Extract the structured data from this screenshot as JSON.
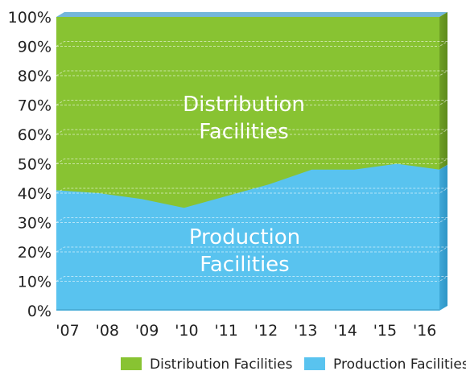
{
  "chart_data": {
    "type": "area",
    "stacked": true,
    "normalized": true,
    "categories": [
      "'07",
      "'08",
      "'09",
      "'10",
      "'11",
      "'12",
      "'13",
      "'14",
      "'15",
      "'16"
    ],
    "series": [
      {
        "name": "Production Facilities",
        "values": [
          41,
          40,
          38,
          35,
          39,
          43,
          48,
          48,
          50,
          48
        ],
        "color": "#59c3ef",
        "label_lines": [
          "Production",
          "Facilities"
        ]
      },
      {
        "name": "Distribution Facilities",
        "values": [
          59,
          60,
          62,
          65,
          61,
          57,
          52,
          52,
          50,
          52
        ],
        "color": "#88c332",
        "label_lines": [
          "Distribution",
          "Facilities"
        ]
      }
    ],
    "y_ticks": [
      "0%",
      "10%",
      "20%",
      "30%",
      "40%",
      "50%",
      "60%",
      "70%",
      "80%",
      "90%",
      "100%"
    ],
    "ylim": [
      0,
      100
    ],
    "grid": true,
    "legend": {
      "placement": "bottom",
      "entries": [
        {
          "label": "Distribution Facilities",
          "color": "#88c332"
        },
        {
          "label": "Production Facilities",
          "color": "#59c3ef"
        }
      ]
    },
    "title": "",
    "xlabel": "",
    "ylabel": ""
  }
}
